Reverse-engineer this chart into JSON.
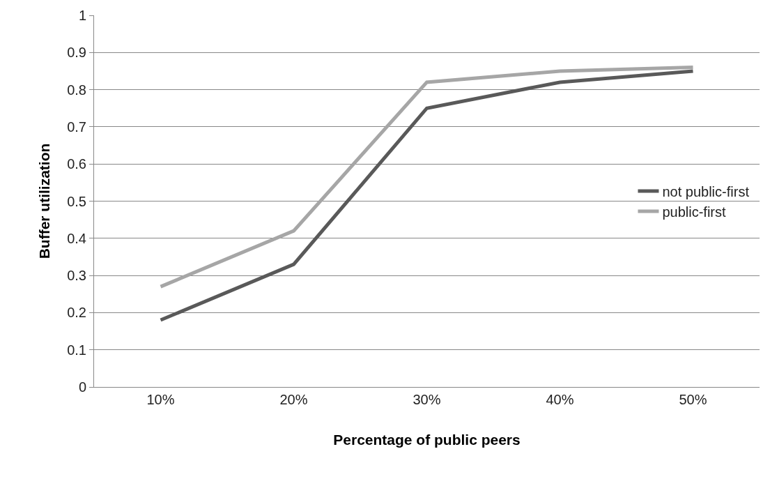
{
  "chart_data": {
    "type": "line",
    "xlabel": "Percentage of public peers",
    "ylabel": "Buffer utilization",
    "categories": [
      "10%",
      "20%",
      "30%",
      "40%",
      "50%"
    ],
    "series": [
      {
        "name": "not public-first",
        "color": "#595959",
        "values": [
          0.18,
          0.33,
          0.75,
          0.82,
          0.85
        ]
      },
      {
        "name": "public-first",
        "color": "#a6a6a6",
        "values": [
          0.27,
          0.42,
          0.82,
          0.85,
          0.86
        ]
      }
    ],
    "ylim": [
      0,
      1
    ],
    "yticks": [
      0,
      0.1,
      0.2,
      0.3,
      0.4,
      0.5,
      0.6,
      0.7,
      0.8,
      0.9,
      1
    ],
    "grid": "y",
    "legend": "right",
    "marker": "none",
    "line_style": "solid"
  }
}
